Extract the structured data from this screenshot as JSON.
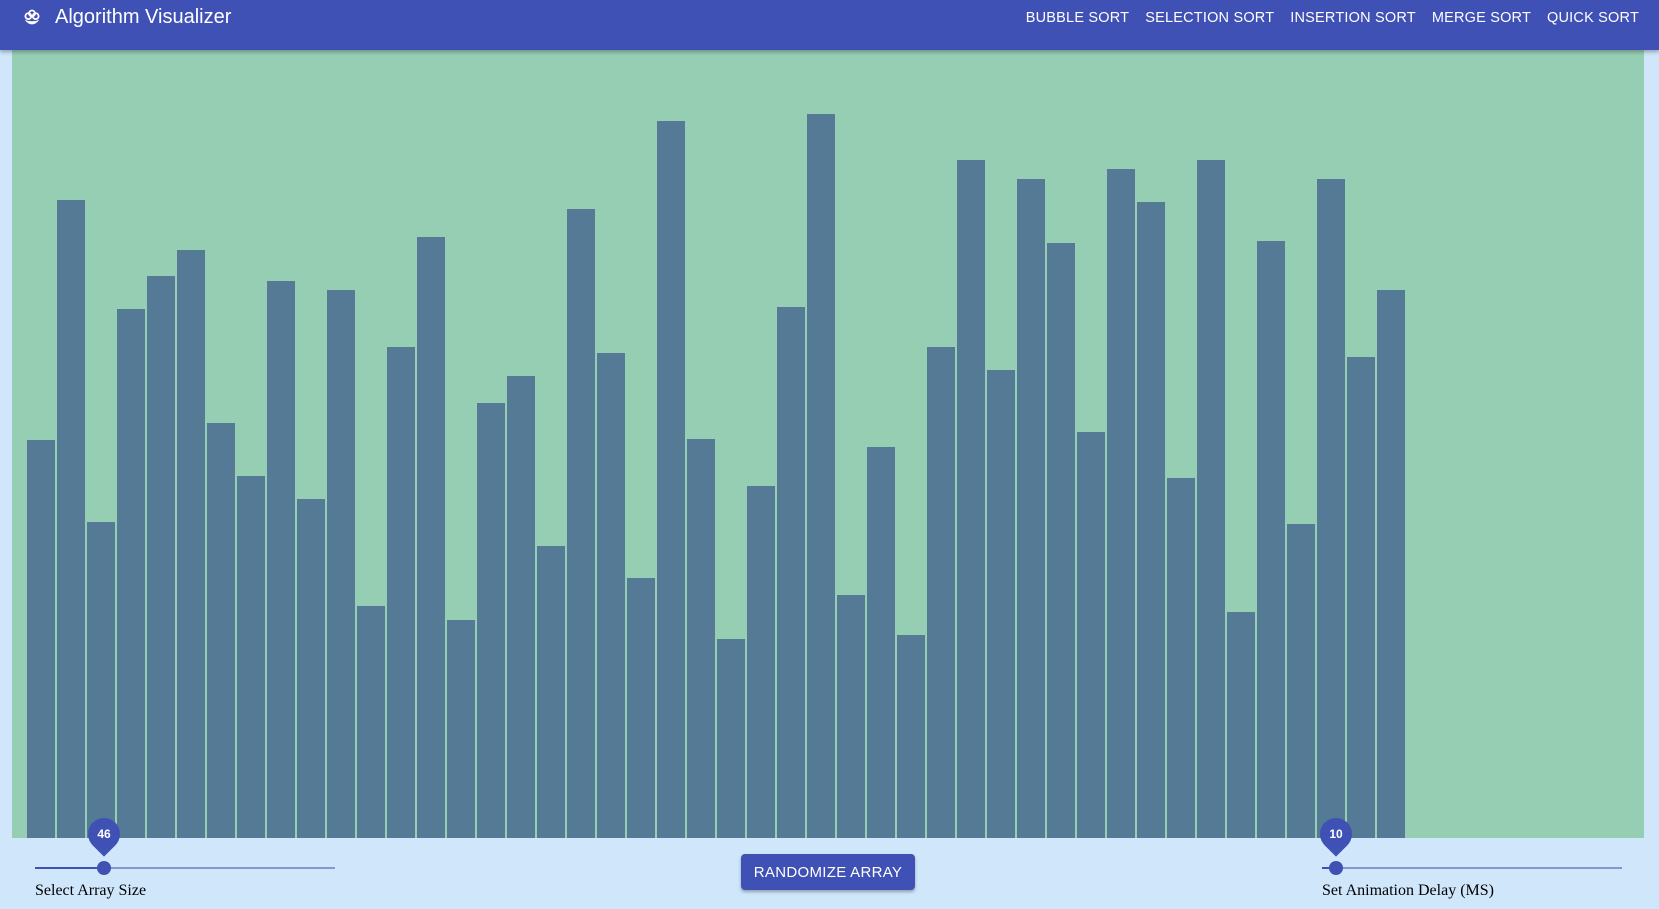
{
  "app": {
    "title": "Algorithm Visualizer",
    "logo_icon": "flower-logo-icon"
  },
  "nav": {
    "items": [
      {
        "label": "BUBBLE SORT"
      },
      {
        "label": "SELECTION SORT"
      },
      {
        "label": "INSERTION SORT"
      },
      {
        "label": "MERGE SORT"
      },
      {
        "label": "QUICK SORT"
      }
    ]
  },
  "colors": {
    "primary": "#3f51b5",
    "canvas_bg": "#96ceb4",
    "bar": "#547a96",
    "page_bg": "#cfe6fb"
  },
  "chart_data": {
    "type": "bar",
    "values": [
      398,
      638,
      316,
      529,
      562,
      588,
      415,
      362,
      557,
      339,
      548,
      232,
      491,
      601,
      218,
      435,
      462,
      292,
      629,
      485,
      260,
      717,
      399,
      199,
      352,
      531,
      724,
      243,
      391,
      203,
      491,
      678,
      468,
      659,
      595,
      406,
      669,
      636,
      360,
      678,
      226,
      597,
      314,
      659,
      481,
      548
    ],
    "ylim": [
      0,
      788
    ]
  },
  "controls": {
    "array_size": {
      "label": "Select Array Size",
      "value": "46",
      "fraction": 0.23
    },
    "randomize_label": "RANDOMIZE ARRAY",
    "animation_delay": {
      "label": "Set Animation Delay (MS)",
      "value": "10",
      "fraction": 0.045
    }
  }
}
